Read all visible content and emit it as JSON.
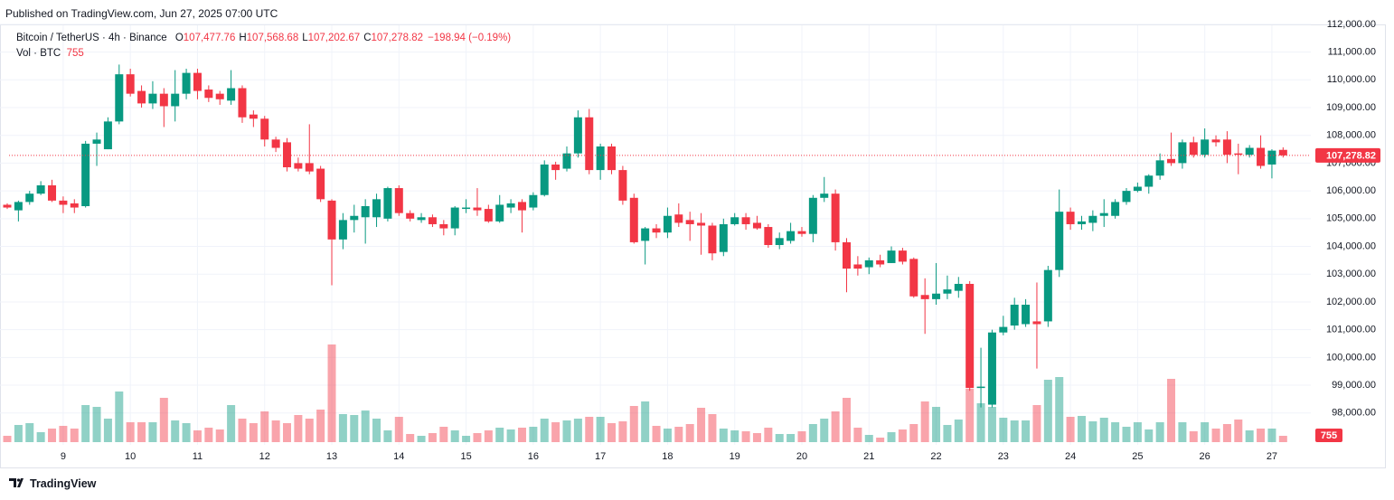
{
  "header": {
    "published": "Published on TradingView.com, Jun 27, 2025 07:00 UTC"
  },
  "footer": {
    "brand": "TradingView"
  },
  "chart_data": {
    "type": "candlestick",
    "legend": {
      "symbol": "Bitcoin / TetherUS · 4h · Binance",
      "items": [
        {
          "key": "O",
          "value": "107,477.76"
        },
        {
          "key": "H",
          "value": "107,568.68"
        },
        {
          "key": "L",
          "value": "107,202.67"
        },
        {
          "key": "C",
          "value": "107,278.82"
        }
      ],
      "change": "−198.94 (−0.19%)",
      "volume_title": "Vol · BTC"
    },
    "last_price_label": "107,278.82",
    "up_color": "#089981",
    "down_color": "#f23645",
    "grid": true,
    "x": [
      null,
      null,
      null,
      null,
      null,
      "9",
      null,
      null,
      null,
      null,
      null,
      "10",
      null,
      null,
      null,
      null,
      null,
      "11",
      null,
      null,
      null,
      null,
      null,
      "12",
      null,
      null,
      null,
      null,
      null,
      "13",
      null,
      null,
      null,
      null,
      null,
      "14",
      null,
      null,
      null,
      null,
      null,
      "15",
      null,
      null,
      null,
      null,
      null,
      "16",
      null,
      null,
      null,
      null,
      null,
      "17",
      null,
      null,
      null,
      null,
      null,
      "18",
      null,
      null,
      null,
      null,
      null,
      "19",
      null,
      null,
      null,
      null,
      null,
      "20",
      null,
      null,
      null,
      null,
      null,
      "21",
      null,
      null,
      null,
      null,
      null,
      "22",
      null,
      null,
      null,
      null,
      null,
      "23",
      null,
      null,
      null,
      null,
      null,
      "24",
      null,
      null,
      null,
      null,
      null,
      "25",
      null,
      null,
      null,
      null,
      null,
      "26",
      null,
      null,
      null,
      null,
      null,
      "27",
      null
    ],
    "open": [
      105500,
      105300,
      105600,
      105900,
      106200,
      105650,
      105550,
      105450,
      107700,
      107500,
      108500,
      110200,
      109600,
      109150,
      109500,
      109050,
      109500,
      110250,
      109650,
      109500,
      109250,
      109700,
      108750,
      108600,
      107850,
      107750,
      107000,
      107000,
      106800,
      105650,
      104250,
      104950,
      105050,
      105050,
      105000,
      106100,
      105200,
      104950,
      105050,
      104800,
      104650,
      105350,
      105400,
      105350,
      104900,
      105400,
      105600,
      105400,
      105850,
      106950,
      106800,
      107350,
      108650,
      106750,
      107600,
      106750,
      105750,
      104200,
      104650,
      104500,
      105150,
      104950,
      104850,
      104750,
      103800,
      104800,
      105050,
      104850,
      104700,
      104050,
      104200,
      104550,
      104450,
      105750,
      105900,
      104150,
      103350,
      103250,
      103500,
      103400,
      103850,
      103550,
      102250,
      102100,
      102300,
      102400,
      102650,
      98900,
      98300,
      100900,
      101150,
      101200,
      101300,
      101300,
      103150,
      105250,
      104800,
      104850,
      105100,
      105100,
      105600,
      106000,
      106150,
      106550,
      107150,
      107000,
      107750,
      107300,
      107850,
      107850,
      107350,
      107300,
      107550,
      106950,
      107477.76
    ],
    "high": [
      105550,
      105650,
      106000,
      106350,
      106400,
      105800,
      105700,
      107800,
      108100,
      108650,
      110550,
      110400,
      109800,
      109950,
      109700,
      110350,
      110400,
      110400,
      109800,
      109600,
      110350,
      109800,
      108900,
      108700,
      107950,
      107900,
      107200,
      108400,
      106900,
      105700,
      105200,
      105500,
      105700,
      105900,
      106150,
      106200,
      105300,
      105200,
      105150,
      104950,
      105450,
      105700,
      106100,
      105500,
      105850,
      105700,
      105700,
      105950,
      107100,
      107050,
      107600,
      108900,
      108950,
      107700,
      107700,
      106900,
      105900,
      104700,
      104800,
      105400,
      105550,
      105250,
      105200,
      104850,
      105000,
      105200,
      105200,
      105100,
      104800,
      104500,
      104850,
      104700,
      105850,
      106500,
      106050,
      104300,
      103650,
      103600,
      103700,
      104000,
      103950,
      103600,
      102850,
      103400,
      102950,
      102900,
      102750,
      100350,
      101000,
      101500,
      102150,
      102100,
      102700,
      103300,
      106050,
      105400,
      105100,
      105300,
      105700,
      105700,
      106100,
      106300,
      106600,
      107350,
      108100,
      107850,
      107950,
      108250,
      108000,
      108150,
      107700,
      107650,
      108000,
      107500,
      107568.68
    ],
    "low": [
      105350,
      104900,
      105500,
      105850,
      105600,
      105200,
      105200,
      105400,
      106900,
      107500,
      108400,
      109400,
      109000,
      108950,
      108300,
      108500,
      109300,
      109300,
      109200,
      109100,
      109100,
      108450,
      108300,
      107600,
      107400,
      106700,
      106700,
      106600,
      105600,
      102600,
      103900,
      104500,
      104100,
      104700,
      104900,
      105100,
      104900,
      104850,
      104700,
      104400,
      104400,
      105200,
      105100,
      104850,
      104850,
      105200,
      104500,
      105300,
      105800,
      106400,
      106700,
      107200,
      106600,
      106400,
      106600,
      105500,
      104100,
      103350,
      104300,
      104300,
      104700,
      104200,
      103700,
      103500,
      103650,
      104750,
      104600,
      104600,
      103950,
      103900,
      104100,
      104350,
      104150,
      105600,
      103850,
      102350,
      102950,
      103000,
      103250,
      103400,
      103350,
      102150,
      100850,
      101900,
      102100,
      102150,
      98800,
      98200,
      98200,
      100800,
      101000,
      101100,
      99600,
      101100,
      102900,
      104600,
      104600,
      104550,
      104700,
      105000,
      105500,
      105950,
      105900,
      106400,
      106900,
      106800,
      107200,
      107200,
      107600,
      107000,
      106600,
      107200,
      106800,
      106450,
      107202.67
    ],
    "close": [
      105400,
      105600,
      105900,
      106200,
      105650,
      105500,
      105400,
      107700,
      107850,
      108500,
      110200,
      109500,
      109150,
      109500,
      109050,
      109500,
      110250,
      109600,
      109350,
      109300,
      109700,
      108650,
      108600,
      107850,
      107550,
      106850,
      106800,
      106700,
      105700,
      104250,
      104950,
      105100,
      105450,
      105700,
      106100,
      105200,
      105000,
      105050,
      104800,
      104650,
      105400,
      105400,
      105300,
      104900,
      105500,
      105550,
      105300,
      105850,
      106950,
      106750,
      107350,
      108650,
      106750,
      107600,
      106750,
      105650,
      104150,
      104650,
      104500,
      105100,
      104850,
      104800,
      104750,
      103750,
      104800,
      105050,
      104800,
      104650,
      104050,
      104300,
      104550,
      104450,
      105750,
      105900,
      104150,
      103200,
      103200,
      103500,
      103350,
      103850,
      103450,
      102200,
      102100,
      102300,
      102450,
      102650,
      98900,
      98950,
      100900,
      101100,
      101900,
      101900,
      101200,
      103150,
      105250,
      104800,
      104900,
      105100,
      105200,
      105600,
      106000,
      106150,
      106550,
      107100,
      107000,
      107750,
      107300,
      107850,
      107750,
      107300,
      107300,
      107550,
      106900,
      107450,
      107278.82
    ],
    "volume": [
      756,
      2052,
      2268,
      1188,
      1620,
      1944,
      1620,
      4428,
      4212,
      2808,
      6048,
      2376,
      2376,
      2376,
      5292,
      2592,
      2268,
      1404,
      1728,
      1512,
      4428,
      2808,
      2268,
      3672,
      2592,
      2268,
      3240,
      2808,
      3888,
      11664,
      3348,
      3240,
      3780,
      2808,
      1404,
      3024,
      972,
      756,
      1080,
      1836,
      1404,
      756,
      1080,
      1404,
      1728,
      1512,
      1728,
      1836,
      2808,
      2376,
      2592,
      2808,
      3024,
      3024,
      2268,
      2484,
      4320,
      4860,
      1944,
      1620,
      1836,
      2160,
      4104,
      3348,
      1620,
      1404,
      1296,
      1080,
      1728,
      972,
      972,
      1296,
      2160,
      2808,
      3672,
      5292,
      1728,
      864,
      540,
      1188,
      1512,
      2160,
      4860,
      4212,
      2052,
      2700,
      6372,
      4644,
      4212,
      2916,
      2592,
      2592,
      4428,
      7452,
      7776,
      3024,
      3132,
      2484,
      2916,
      2376,
      1836,
      2376,
      1512,
      2376,
      7560,
      2376,
      1296,
      2376,
      1620,
      2160,
      2700,
      1404,
      1620,
      1620,
      755
    ],
    "ylim": [
      96950,
      112550
    ],
    "yticks": [
      {
        "value": 98000,
        "label": "98,000.00"
      },
      {
        "value": 99000,
        "label": "99,000.00"
      },
      {
        "value": 100000,
        "label": "100,000.00"
      },
      {
        "value": 101000,
        "label": "101,000.00"
      },
      {
        "value": 102000,
        "label": "102,000.00"
      },
      {
        "value": 103000,
        "label": "103,000.00"
      },
      {
        "value": 104000,
        "label": "104,000.00"
      },
      {
        "value": 105000,
        "label": "105,000.00"
      },
      {
        "value": 106000,
        "label": "106,000.00"
      },
      {
        "value": 107000,
        "label": "107,000.00"
      },
      {
        "value": 108000,
        "label": "108,000.00"
      },
      {
        "value": 109000,
        "label": "109,000.00"
      },
      {
        "value": 110000,
        "label": "110,000.00"
      },
      {
        "value": 111000,
        "label": "111,000.00"
      },
      {
        "value": 112000,
        "label": "112,000.00"
      }
    ]
  }
}
